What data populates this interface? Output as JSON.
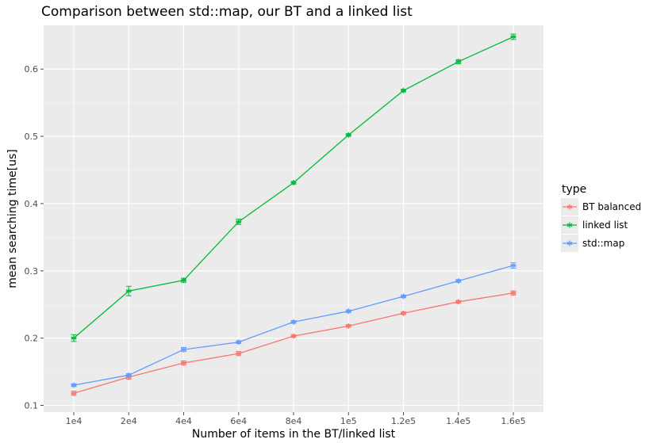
{
  "chart_data": {
    "type": "line",
    "title": "Comparison between std::map, our BT and a linked list",
    "xlabel": "Number of items in the BT/linked list",
    "ylabel": "mean searching time[us]",
    "categories": [
      "1e4",
      "2e4",
      "4e4",
      "6e4",
      "8e4",
      "1e5",
      "1.2e5",
      "1.4e5",
      "1.6e5"
    ],
    "yticks": [
      "0.1",
      "0.2",
      "0.3",
      "0.4",
      "0.5",
      "0.6"
    ],
    "ylim": [
      0.09,
      0.665
    ],
    "grid": true,
    "legend": {
      "title": "type",
      "position": "right"
    },
    "series": [
      {
        "name": "BT balanced",
        "color": "#F8766D",
        "values": [
          0.118,
          0.142,
          0.163,
          0.177,
          0.203,
          0.218,
          0.237,
          0.254,
          0.267
        ],
        "errors": [
          0.003,
          0.003,
          0.003,
          0.003,
          0.002,
          0.002,
          0.002,
          0.002,
          0.003
        ]
      },
      {
        "name": "linked list",
        "color": "#00BA38",
        "values": [
          0.2,
          0.27,
          0.286,
          0.373,
          0.431,
          0.502,
          0.568,
          0.611,
          0.648
        ],
        "errors": [
          0.005,
          0.007,
          0.003,
          0.004,
          0.002,
          0.002,
          0.002,
          0.003,
          0.004
        ]
      },
      {
        "name": "std::map",
        "color": "#619CFF",
        "values": [
          0.13,
          0.145,
          0.183,
          0.194,
          0.224,
          0.24,
          0.262,
          0.285,
          0.308
        ],
        "errors": [
          0.002,
          0.002,
          0.003,
          0.002,
          0.002,
          0.002,
          0.002,
          0.002,
          0.004
        ]
      }
    ]
  }
}
